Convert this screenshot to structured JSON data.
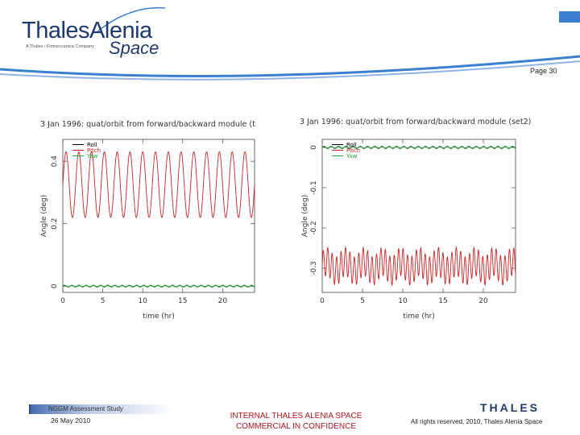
{
  "header": {
    "logo_text": "ThalesAlenia",
    "logo_tagline": "A Thales / Finmeccanica Company",
    "logo_space": "Space",
    "page_number": "Page 30"
  },
  "colors": {
    "roll": "#000000",
    "pitch": "#cc2222",
    "yaw": "#22aa33",
    "brand_blue": "#1f3a6e",
    "accent_blue": "#3a7fd0",
    "confidential_red": "#b0141e"
  },
  "chart_data": [
    {
      "type": "line",
      "title": "3 Jan 1996: quat/orbit from forward/backward module (t",
      "xlabel": "time (hr)",
      "ylabel": "Angle (deg)",
      "xlim": [
        0,
        24
      ],
      "ylim": [
        -0.02,
        0.47
      ],
      "xticks": [
        0,
        5,
        10,
        15,
        20
      ],
      "yticks": [
        0,
        0.2,
        0.4
      ],
      "xtick_labels": [
        "0",
        "5",
        "10",
        "15",
        "20"
      ],
      "ytick_labels": [
        "0",
        "0.2",
        "0.4"
      ],
      "legend": [
        "Roll",
        "Pitch",
        "Yaw"
      ],
      "legend_position": "top-left",
      "grid": false,
      "series": [
        {
          "name": "Roll",
          "offset": 0.0,
          "amplitude": 0.002,
          "period_hr": 0.9
        },
        {
          "name": "Pitch",
          "offset": 0.325,
          "amplitude": 0.105,
          "period_hr": 1.6
        },
        {
          "name": "Yaw",
          "offset": 0.0,
          "amplitude": 0.003,
          "period_hr": 0.9
        }
      ]
    },
    {
      "type": "line",
      "title": "3 Jan 1996: quat/orbit from forward/backward module (set2)",
      "xlabel": "time (hr)",
      "ylabel": "Angle (deg)",
      "xlim": [
        0,
        24
      ],
      "ylim": [
        -0.36,
        0.02
      ],
      "xticks": [
        0,
        5,
        10,
        15,
        20
      ],
      "yticks": [
        0,
        -0.1,
        -0.2,
        -0.3
      ],
      "xtick_labels": [
        "0",
        "5",
        "10",
        "15",
        "20"
      ],
      "ytick_labels": [
        "0",
        "-0.1",
        "-0.2",
        "-0.3"
      ],
      "legend": [
        "Roll",
        "Pitch",
        "Yaw"
      ],
      "legend_position": "top-left",
      "grid": false,
      "series": [
        {
          "name": "Roll",
          "offset": 0.0,
          "amplitude": 0.002,
          "period_hr": 0.9
        },
        {
          "name": "Pitch",
          "offset": -0.295,
          "amplitude": 0.035,
          "period_hr": 0.55
        },
        {
          "name": "Yaw",
          "offset": 0.0,
          "amplitude": 0.003,
          "period_hr": 0.9
        }
      ]
    }
  ],
  "footer": {
    "study": "NGGM Assessment Study",
    "date": "26 May 2010",
    "confidential_line1": "INTERNAL THALES ALENIA SPACE",
    "confidential_line2": "COMMERCIAL IN CONFIDENCE",
    "rights": "All rights reserved, 2010, Thales Alenia Space",
    "brand": "THALES"
  }
}
